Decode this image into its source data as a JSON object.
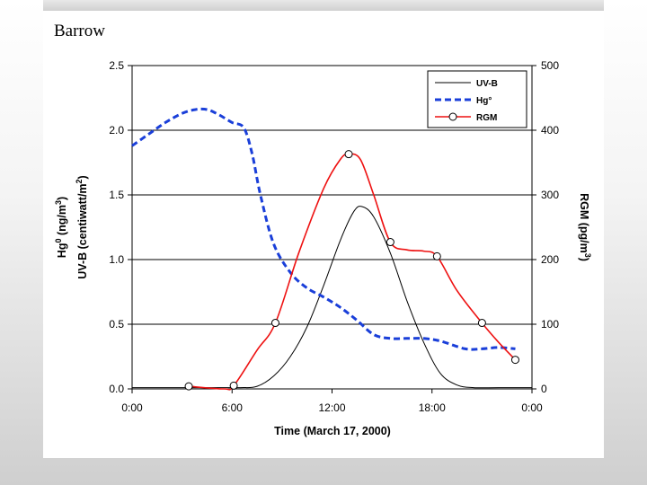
{
  "slide": {
    "title": "Barrow"
  },
  "chart_data": {
    "type": "line",
    "xlabel": "Time (March 17, 2000)",
    "ylabel_left_line1": "Hg",
    "ylabel_left_line1_sup": "0",
    "ylabel_left_line1_unit": " (ng/m",
    "ylabel_left_line1_unit_sup": "3",
    "ylabel_left_line1_close": ")",
    "ylabel_left_line2": "UV-B (centiwatt/m",
    "ylabel_left_line2_sup": "2",
    "ylabel_left_line2_close": ")",
    "ylabel_right": "RGM (pg/m",
    "ylabel_right_sup": "3",
    "ylabel_right_close": ")",
    "x_ticks": [
      "0:00",
      "6:00",
      "12:00",
      "18:00",
      "0:00"
    ],
    "x_range_hours": [
      0,
      24
    ],
    "y_left": {
      "ylim": [
        0,
        2.5
      ],
      "ticks": [
        "0.0",
        "0.5",
        "1.0",
        "1.5",
        "2.0",
        "2.5"
      ]
    },
    "y_right": {
      "ylim": [
        0,
        500
      ],
      "ticks": [
        "0",
        "100",
        "200",
        "300",
        "400",
        "500"
      ]
    },
    "grid": "horizontal",
    "legend_position": "top-right",
    "series": [
      {
        "name": "UV-B",
        "axis": "left",
        "color": "#000000",
        "style": "solid",
        "x": [
          0,
          5,
          6.5,
          7.5,
          8.5,
          9.5,
          10.5,
          11.5,
          12.5,
          13.3,
          13.8,
          14.5,
          15.5,
          16.5,
          17.5,
          18.5,
          19.5,
          20.5,
          22,
          24
        ],
        "y": [
          0.01,
          0.01,
          0.01,
          0.02,
          0.1,
          0.25,
          0.48,
          0.8,
          1.15,
          1.37,
          1.41,
          1.33,
          1.05,
          0.68,
          0.36,
          0.12,
          0.03,
          0.01,
          0.01,
          0.01
        ]
      },
      {
        "name": "Hg°",
        "axis": "left",
        "color": "#1a3fd9",
        "style": "dashed",
        "x": [
          0,
          1,
          2,
          3,
          3.8,
          4.5,
          5.2,
          6,
          6.7,
          7.2,
          7.7,
          8.5,
          9.5,
          10.5,
          11.5,
          12.5,
          13.5,
          14.5,
          15.5,
          16.5,
          17.5,
          18.5,
          20,
          21,
          22,
          23
        ],
        "y": [
          1.88,
          1.97,
          2.06,
          2.13,
          2.16,
          2.16,
          2.12,
          2.06,
          2.02,
          1.82,
          1.5,
          1.12,
          0.9,
          0.78,
          0.71,
          0.63,
          0.53,
          0.42,
          0.39,
          0.39,
          0.39,
          0.37,
          0.31,
          0.31,
          0.32,
          0.31
        ]
      },
      {
        "name": "RGM",
        "axis": "right",
        "color": "#ee1111",
        "style": "solid-markers",
        "x": [
          3.4,
          5.5,
          6.1,
          7.5,
          8.6,
          10,
          11.5,
          12.5,
          13,
          13.7,
          14.5,
          15.5,
          16.5,
          17.5,
          18.3,
          19.5,
          21,
          22,
          23
        ],
        "y": [
          4,
          0,
          5,
          60,
          102,
          210,
          310,
          355,
          363,
          355,
          300,
          227,
          215,
          213,
          205,
          152,
          102,
          72,
          45
        ]
      }
    ],
    "rgm_markers": {
      "x": [
        3.4,
        6.1,
        8.6,
        13,
        15.5,
        18.3,
        21,
        23
      ],
      "y": [
        4,
        5,
        102,
        363,
        227,
        205,
        102,
        45
      ]
    }
  }
}
